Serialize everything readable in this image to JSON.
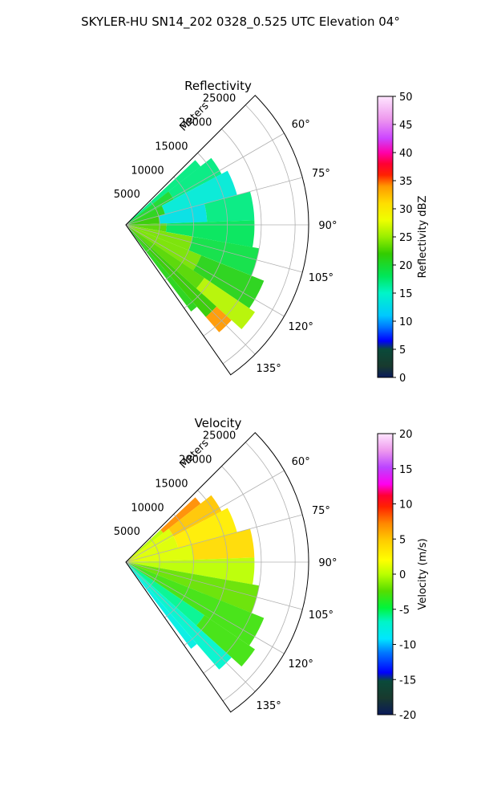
{
  "suptitle": "SKYLER-HU  SN14_202  0328_0.525 UTC Elevation 04°",
  "range_label": "Meters",
  "range_ticks": [
    5000,
    10000,
    15000,
    20000,
    25000
  ],
  "range_max": 27000,
  "azimuth_range": [
    45,
    145
  ],
  "azimuth_ticks": [
    60,
    75,
    90,
    105,
    120,
    135
  ],
  "azimuth_tick_suffix": "°",
  "panels": [
    {
      "key": "reflectivity",
      "title": "Reflectivity",
      "cbar_label": "Reflectivity dBZ",
      "cbar_ticks": [
        0,
        5,
        10,
        15,
        20,
        25,
        30,
        35,
        40,
        45,
        50
      ],
      "vmin": 0,
      "vmax": 50
    },
    {
      "key": "velocity",
      "title": "Velocity",
      "cbar_label": "Velocity (m/s)",
      "cbar_ticks": [
        -20,
        -15,
        -10,
        -5,
        0,
        5,
        10,
        15,
        20
      ],
      "vmin": -20,
      "vmax": 20
    }
  ],
  "chart_data": [
    {
      "type": "heatmap",
      "title": "Reflectivity",
      "projection": "polar",
      "theta_unit": "degrees",
      "r_unit": "Meters",
      "colorbar_label": "Reflectivity dBZ",
      "clim": [
        0,
        50
      ],
      "sectors": [
        {
          "az": [
            47,
            52
          ],
          "r": [
            0,
            14000
          ],
          "value": 17
        },
        {
          "az": [
            52,
            62
          ],
          "r": [
            0,
            8000
          ],
          "value": 20
        },
        {
          "az": [
            52,
            62
          ],
          "r": [
            8000,
            16000
          ],
          "value": 17
        },
        {
          "az": [
            62,
            75
          ],
          "r": [
            0,
            6000
          ],
          "value": 21
        },
        {
          "az": [
            62,
            75
          ],
          "r": [
            6000,
            17000
          ],
          "value": 14
        },
        {
          "az": [
            75,
            88
          ],
          "r": [
            0,
            5000
          ],
          "value": 22
        },
        {
          "az": [
            75,
            88
          ],
          "r": [
            5000,
            12000
          ],
          "value": 13
        },
        {
          "az": [
            75,
            88
          ],
          "r": [
            12000,
            19000
          ],
          "value": 17
        },
        {
          "az": [
            88,
            100
          ],
          "r": [
            0,
            6000
          ],
          "value": 23
        },
        {
          "az": [
            88,
            100
          ],
          "r": [
            6000,
            19000
          ],
          "value": 18
        },
        {
          "az": [
            100,
            112
          ],
          "r": [
            0,
            10000
          ],
          "value": 24
        },
        {
          "az": [
            100,
            112
          ],
          "r": [
            10000,
            20000
          ],
          "value": 19
        },
        {
          "az": [
            112,
            124
          ],
          "r": [
            0,
            12000
          ],
          "value": 24
        },
        {
          "az": [
            112,
            124
          ],
          "r": [
            12000,
            22000
          ],
          "value": 21
        },
        {
          "az": [
            124,
            132
          ],
          "r": [
            0,
            14000
          ],
          "value": 23
        },
        {
          "az": [
            124,
            132
          ],
          "r": [
            14000,
            23000
          ],
          "value": 26
        },
        {
          "az": [
            132,
            139
          ],
          "r": [
            0,
            18000
          ],
          "value": 22
        },
        {
          "az": [
            132,
            139
          ],
          "r": [
            18000,
            21000
          ],
          "value": 34
        },
        {
          "az": [
            139,
            143
          ],
          "r": [
            0,
            16000
          ],
          "value": 21
        }
      ]
    },
    {
      "type": "heatmap",
      "title": "Velocity",
      "projection": "polar",
      "theta_unit": "degrees",
      "r_unit": "Meters",
      "colorbar_label": "Velocity (m/s)",
      "clim": [
        -20,
        20
      ],
      "sectors": [
        {
          "az": [
            47,
            52
          ],
          "r": [
            0,
            7000
          ],
          "value": 0
        },
        {
          "az": [
            47,
            52
          ],
          "r": [
            7000,
            14000
          ],
          "value": 7
        },
        {
          "az": [
            52,
            62
          ],
          "r": [
            0,
            8000
          ],
          "value": 1
        },
        {
          "az": [
            52,
            62
          ],
          "r": [
            8000,
            16000
          ],
          "value": 5
        },
        {
          "az": [
            62,
            75
          ],
          "r": [
            0,
            8000
          ],
          "value": 1
        },
        {
          "az": [
            62,
            75
          ],
          "r": [
            8000,
            17000
          ],
          "value": 3
        },
        {
          "az": [
            75,
            88
          ],
          "r": [
            0,
            10000
          ],
          "value": 1
        },
        {
          "az": [
            75,
            88
          ],
          "r": [
            10000,
            19000
          ],
          "value": 4
        },
        {
          "az": [
            88,
            100
          ],
          "r": [
            0,
            19000
          ],
          "value": 0
        },
        {
          "az": [
            100,
            112
          ],
          "r": [
            0,
            20000
          ],
          "value": -2
        },
        {
          "az": [
            112,
            124
          ],
          "r": [
            0,
            22000
          ],
          "value": -3
        },
        {
          "az": [
            124,
            132
          ],
          "r": [
            0,
            14000
          ],
          "value": -6
        },
        {
          "az": [
            124,
            132
          ],
          "r": [
            14000,
            23000
          ],
          "value": -3
        },
        {
          "az": [
            132,
            139
          ],
          "r": [
            0,
            21000
          ],
          "value": -7
        },
        {
          "az": [
            139,
            143
          ],
          "r": [
            0,
            16000
          ],
          "value": -8
        }
      ]
    }
  ]
}
